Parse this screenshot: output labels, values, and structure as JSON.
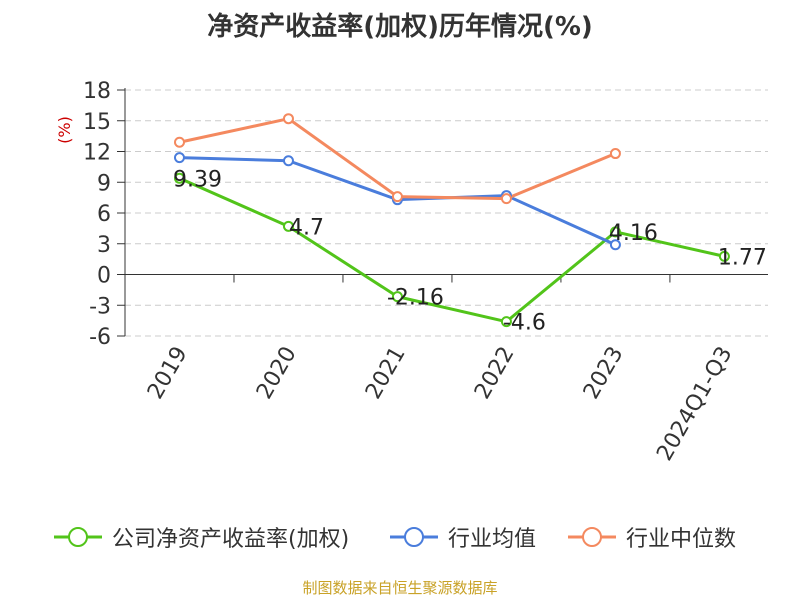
{
  "title": "净资产收益率(加权)历年情况(%)",
  "source": "制图数据来自恒生聚源数据库",
  "chart_data": {
    "type": "line",
    "title": "净资产收益率(加权)历年情况(%)",
    "ylabel": "(%)",
    "ylim": [
      -6,
      18
    ],
    "yticks": [
      18,
      15,
      12,
      9,
      6,
      3,
      0,
      -3,
      -6
    ],
    "grid": true,
    "legend_position": "bottom",
    "categories": [
      "2019",
      "2020",
      "2021",
      "2022",
      "2023",
      "2024Q1-Q3"
    ],
    "series": [
      {
        "name": "公司净资产收益率(加权)",
        "color": "#52c41a",
        "values": [
          9.39,
          4.7,
          -2.16,
          -4.6,
          4.16,
          1.77
        ],
        "labels": [
          "9.39",
          "4.7",
          "-2.16",
          "-4.6",
          "4.16",
          "1.77"
        ]
      },
      {
        "name": "行业均值",
        "color": "#4a7ddc",
        "values": [
          11.4,
          11.1,
          7.3,
          7.7,
          2.9,
          null
        ]
      },
      {
        "name": "行业中位数",
        "color": "#f4895f",
        "values": [
          12.9,
          15.2,
          7.6,
          7.4,
          11.8,
          null
        ]
      }
    ]
  }
}
